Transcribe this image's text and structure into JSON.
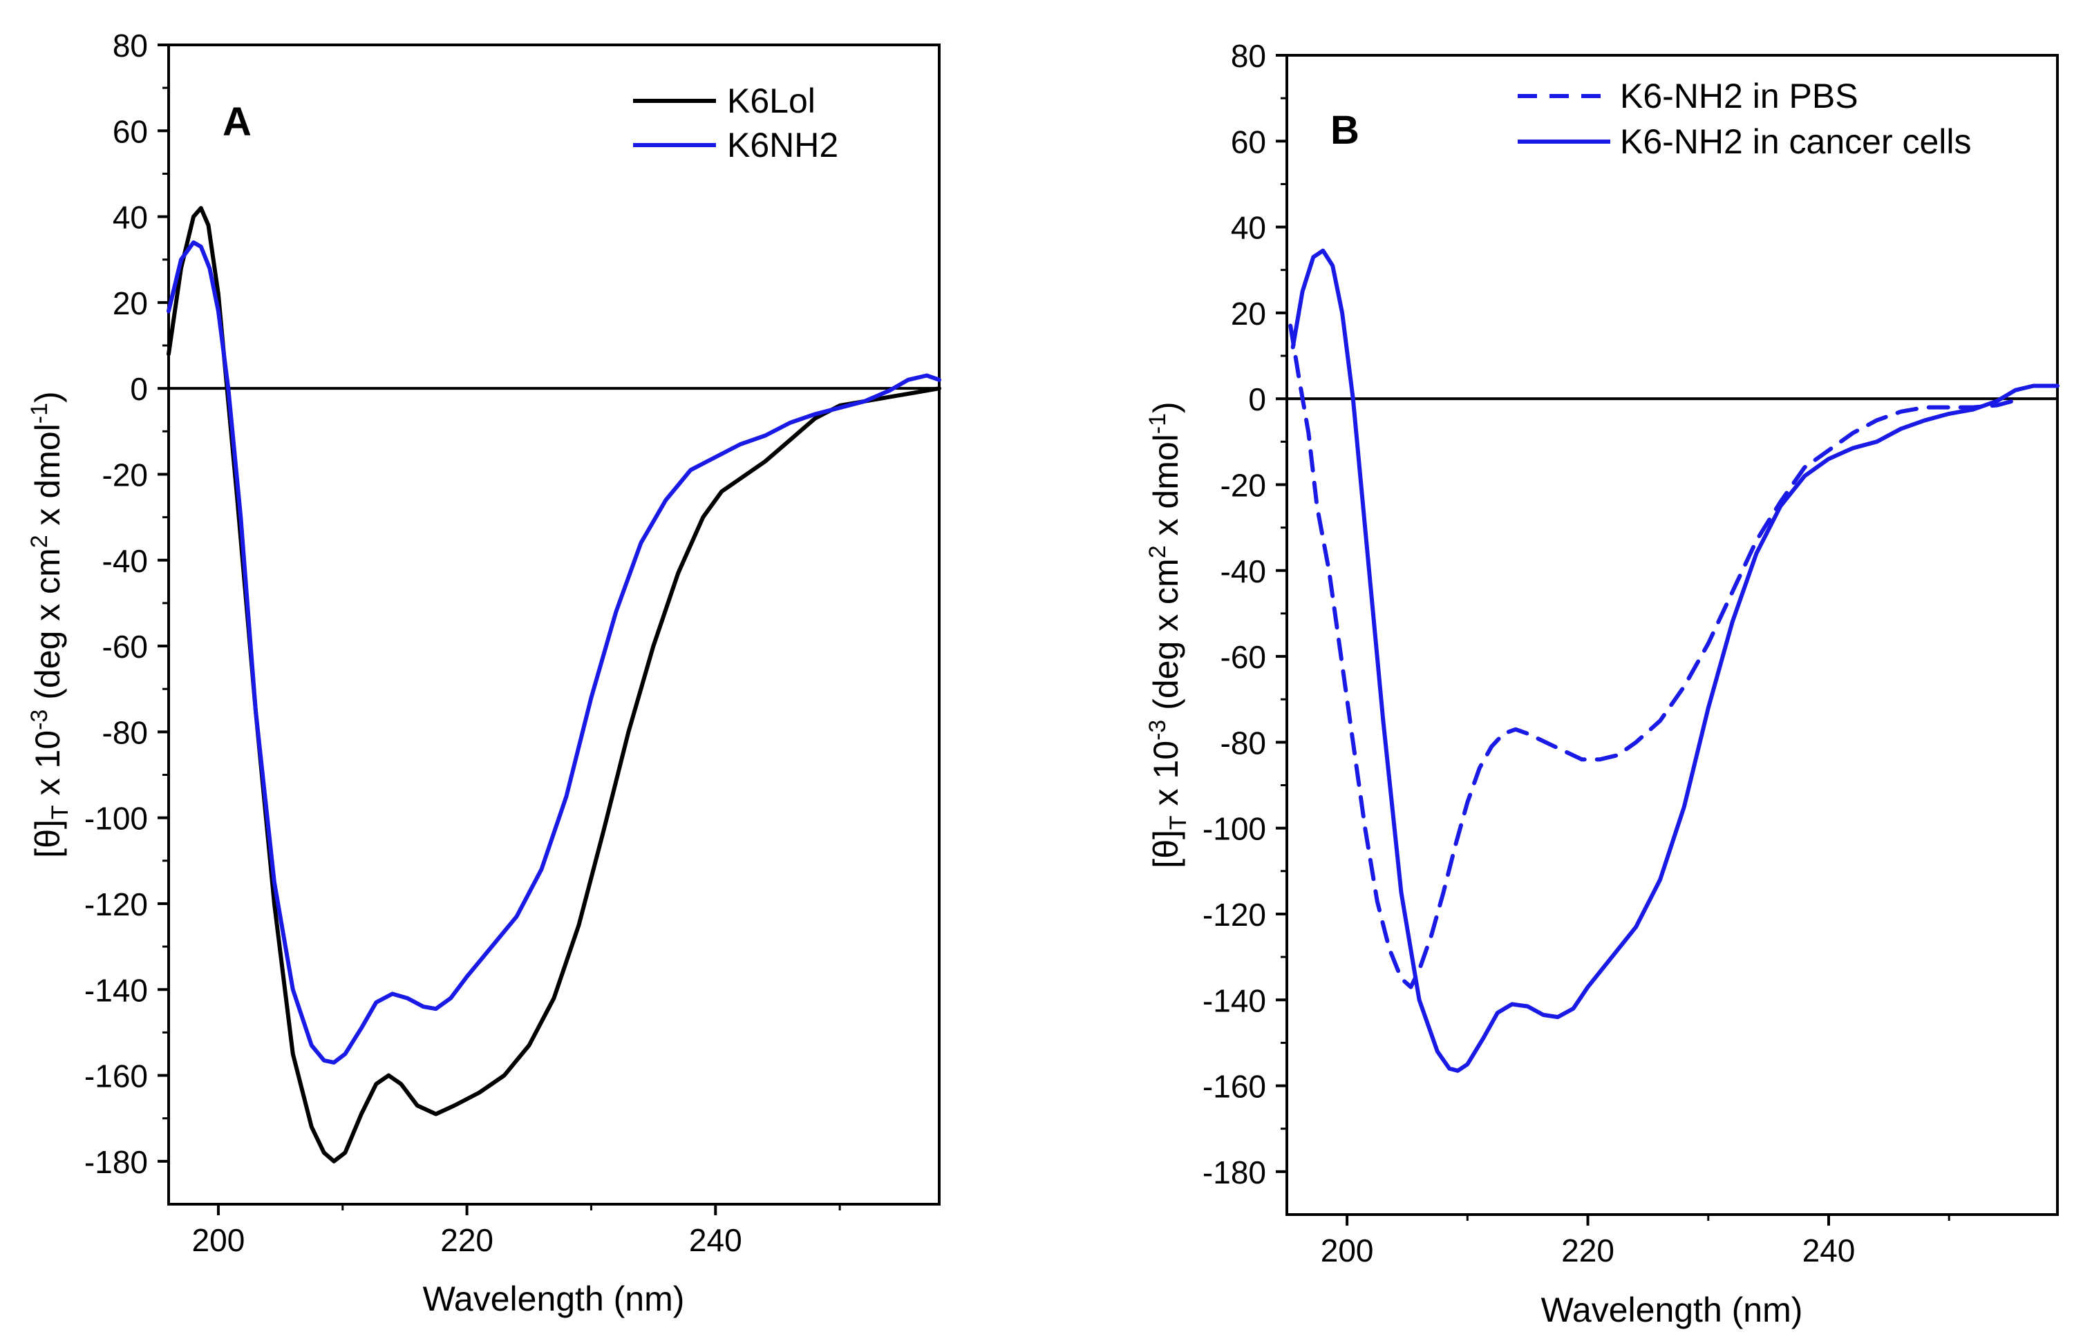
{
  "chart_data": [
    {
      "panel": "A",
      "type": "line",
      "xlabel": "Wavelength (nm)",
      "ylabel": {
        "base": "[θ]",
        "sub": "T",
        "mid": " x 10",
        "sup": "-3",
        "rest": " (deg x cm",
        "sup2": "2",
        "rest2": " x dmol",
        "sup3": "-1",
        "end": ")"
      },
      "xlim": [
        196,
        258
      ],
      "ylim": [
        -190,
        80
      ],
      "xticks": [
        200,
        220,
        240
      ],
      "yticks": [
        80,
        60,
        40,
        20,
        0,
        -20,
        -40,
        -60,
        -80,
        -100,
        -120,
        -140,
        -160,
        -180
      ],
      "legend_position": "top-right",
      "series": [
        {
          "name": "K6Lol",
          "color": "#000000",
          "style": "solid",
          "x": [
            196,
            197,
            198,
            198.6,
            199.2,
            200,
            200.7,
            201.5,
            203,
            204.5,
            206,
            207.5,
            208.5,
            209.3,
            210.2,
            211.5,
            212.7,
            213.7,
            214.7,
            216,
            217.5,
            219,
            221,
            223,
            225,
            227,
            229,
            231,
            233,
            235,
            237,
            239,
            240.5,
            242,
            244,
            246,
            248,
            250,
            252,
            254,
            256,
            258
          ],
          "y": [
            8,
            28,
            40,
            42,
            38,
            22,
            0,
            -25,
            -75,
            -120,
            -155,
            -172,
            -178,
            -180,
            -178,
            -169,
            -162,
            -160,
            -162,
            -167,
            -169,
            -167,
            -164,
            -160,
            -153,
            -142,
            -125,
            -103,
            -80,
            -60,
            -43,
            -30,
            -24,
            -21,
            -17,
            -12,
            -7,
            -4,
            -3,
            -2,
            -1,
            0
          ]
        },
        {
          "name": "K6NH2",
          "color": "#1a1ae6",
          "style": "solid",
          "x": [
            196,
            197,
            198,
            198.6,
            199.3,
            200,
            200.8,
            201.8,
            203,
            204.5,
            206,
            207.5,
            208.5,
            209.3,
            210.2,
            211.5,
            212.7,
            214,
            215.2,
            216.5,
            217.5,
            218.7,
            220,
            222,
            224,
            226,
            228,
            230,
            232,
            234,
            236,
            238,
            240,
            242,
            244,
            246,
            248,
            250,
            252,
            254,
            255.5,
            257,
            258
          ],
          "y": [
            18,
            30,
            34,
            33,
            28,
            18,
            0,
            -30,
            -75,
            -115,
            -140,
            -153,
            -156.5,
            -157,
            -155,
            -149,
            -143,
            -141,
            -142,
            -144,
            -144.5,
            -142,
            -137,
            -130,
            -123,
            -112,
            -95,
            -72,
            -52,
            -36,
            -26,
            -19,
            -16,
            -13,
            -11,
            -8,
            -6,
            -4.5,
            -3,
            -0.5,
            2,
            3,
            2
          ]
        }
      ]
    },
    {
      "panel": "B",
      "type": "line",
      "xlabel": "Wavelength (nm)",
      "ylabel": {
        "base": "[θ]",
        "sub": "T",
        "mid": " x 10",
        "sup": "-3",
        "rest": " (deg x cm",
        "sup2": "2",
        "rest2": " x dmol",
        "sup3": "-1",
        "end": ")"
      },
      "xlim": [
        195,
        259
      ],
      "ylim": [
        -190,
        80
      ],
      "xticks": [
        200,
        220,
        240
      ],
      "yticks": [
        80,
        60,
        40,
        20,
        0,
        -20,
        -40,
        -60,
        -80,
        -100,
        -120,
        -140,
        -160,
        -180
      ],
      "legend_position": "top-right",
      "series": [
        {
          "name": "K6-NH2 in PBS",
          "color": "#1a1ae6",
          "style": "dashed",
          "x": [
            195.3,
            196,
            196.8,
            197.5,
            198.5,
            199.5,
            200.5,
            201.5,
            202.5,
            203.5,
            204.5,
            205.3,
            206,
            207,
            208,
            209,
            210,
            211,
            212,
            213,
            214,
            215,
            216.5,
            218,
            219.5,
            221,
            222.5,
            224,
            226,
            228,
            230,
            232,
            234,
            236,
            238,
            240,
            242,
            244,
            246,
            248,
            250,
            252,
            254,
            256
          ],
          "y": [
            17,
            5,
            -8,
            -25,
            -40,
            -60,
            -80,
            -100,
            -117,
            -128,
            -135,
            -137,
            -133,
            -125,
            -115,
            -104,
            -94,
            -86,
            -81,
            -78,
            -77,
            -78,
            -80,
            -82,
            -84,
            -84,
            -83,
            -80,
            -75,
            -67,
            -57,
            -45,
            -33,
            -24,
            -16,
            -12,
            -8,
            -5,
            -3,
            -2,
            -2,
            -2,
            -1.5,
            0
          ]
        },
        {
          "name": "K6-NH2 in cancer cells",
          "color": "#1a1ae6",
          "style": "solid",
          "x": [
            195.5,
            196.3,
            197.2,
            198,
            198.8,
            199.6,
            200.5,
            201.5,
            203,
            204.5,
            206,
            207.5,
            208.5,
            209.2,
            210,
            211.3,
            212.5,
            213.7,
            215,
            216.3,
            217.5,
            218.8,
            220,
            222,
            224,
            226,
            228,
            230,
            232,
            234,
            236,
            238,
            240,
            242,
            244,
            246,
            248,
            250,
            252,
            254,
            255.5,
            257,
            259
          ],
          "y": [
            12,
            25,
            33,
            34.5,
            31,
            20,
            0,
            -30,
            -75,
            -115,
            -140,
            -152,
            -156,
            -156.5,
            -155,
            -149,
            -143,
            -141,
            -141.5,
            -143.5,
            -144,
            -142,
            -137,
            -130,
            -123,
            -112,
            -95,
            -72,
            -52,
            -36,
            -25,
            -18,
            -14,
            -11.5,
            -10,
            -7,
            -5,
            -3.5,
            -2.5,
            -0.5,
            2,
            3,
            3
          ]
        }
      ]
    }
  ]
}
